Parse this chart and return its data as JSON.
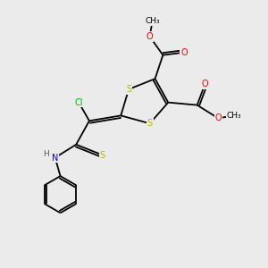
{
  "bg_color": "#ebebeb",
  "atom_colors": {
    "S": "#b8b800",
    "O": "#ff0000",
    "N": "#0000ff",
    "Cl": "#00bb00",
    "C": "#000000",
    "H": "#555555"
  },
  "bond_color": "#000000",
  "bond_lw": 1.3,
  "fig_size": [
    3.0,
    3.0
  ],
  "dpi": 100
}
